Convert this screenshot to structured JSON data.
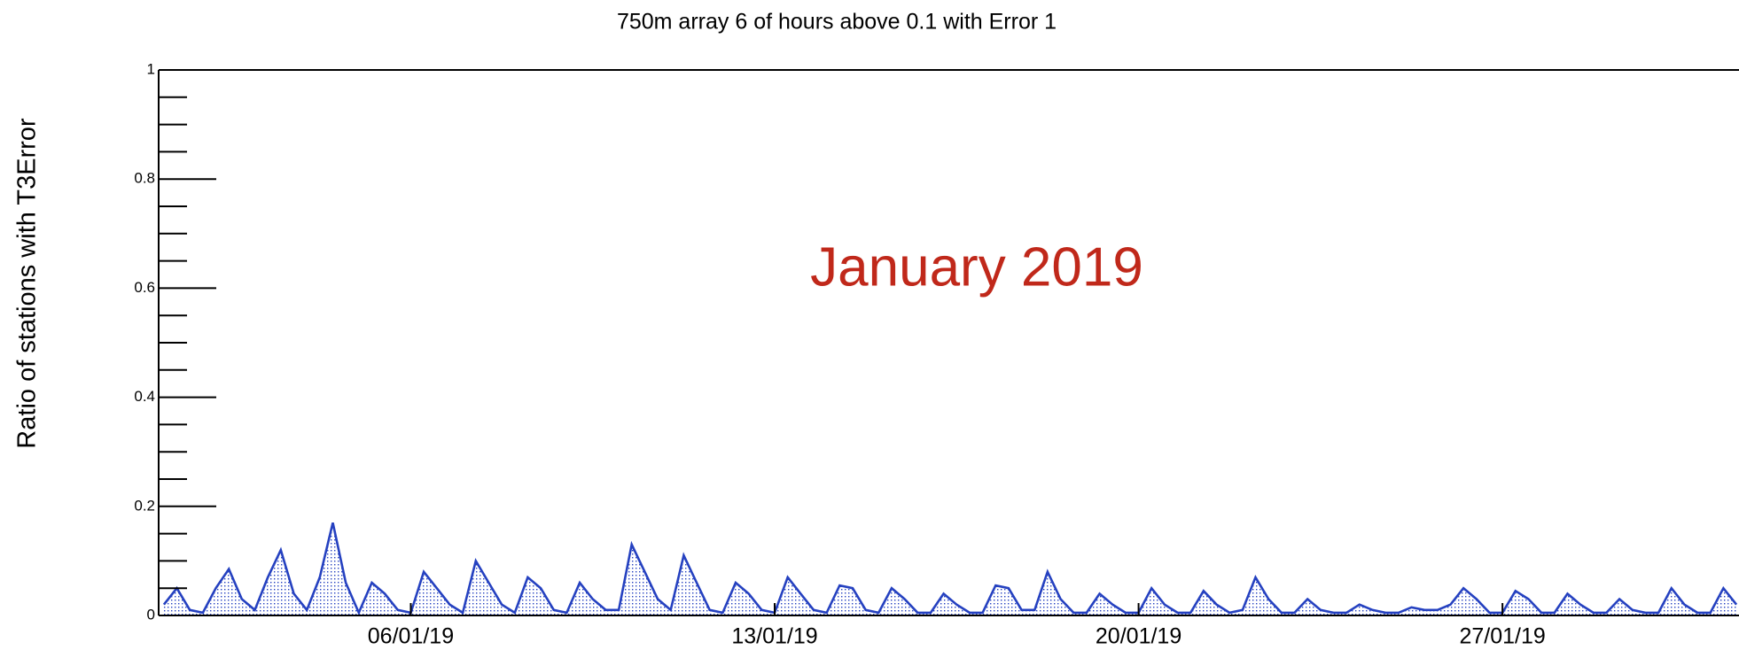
{
  "chart_data": {
    "type": "area",
    "title": "750m array 6 of hours above 0.1  with Error 1",
    "ylabel": "Ratio of stations with T3Error",
    "annotation": "January 2019",
    "color": "#2541c0",
    "annotation_color": "#c0281a",
    "xlim": [
      1.15,
      31.55
    ],
    "ylim": [
      0,
      1
    ],
    "yticks": [
      0,
      0.2,
      0.4,
      0.6,
      0.8,
      1
    ],
    "yminorticks": [
      0.05,
      0.1,
      0.15,
      0.25,
      0.3,
      0.35,
      0.45,
      0.5,
      0.55,
      0.65,
      0.7,
      0.75,
      0.85,
      0.9,
      0.95
    ],
    "xticks": [
      {
        "value": 6,
        "label": "06/01/19"
      },
      {
        "value": 13,
        "label": "13/01/19"
      },
      {
        "value": 20,
        "label": "20/01/19"
      },
      {
        "value": 27,
        "label": "27/01/19"
      }
    ],
    "x": [
      1.25,
      1.5,
      1.75,
      2,
      2.25,
      2.5,
      2.75,
      3,
      3.25,
      3.5,
      3.75,
      4,
      4.25,
      4.5,
      4.75,
      5,
      5.25,
      5.5,
      5.75,
      6,
      6.25,
      6.5,
      6.75,
      7,
      7.25,
      7.5,
      7.75,
      8,
      8.25,
      8.5,
      8.75,
      9,
      9.25,
      9.5,
      9.75,
      10,
      10.25,
      10.5,
      10.75,
      11,
      11.25,
      11.5,
      11.75,
      12,
      12.25,
      12.5,
      12.75,
      13,
      13.25,
      13.5,
      13.75,
      14,
      14.25,
      14.5,
      14.75,
      15,
      15.25,
      15.5,
      15.75,
      16,
      16.25,
      16.5,
      16.75,
      17,
      17.25,
      17.5,
      17.75,
      18,
      18.25,
      18.5,
      18.75,
      19,
      19.25,
      19.5,
      19.75,
      20,
      20.25,
      20.5,
      20.75,
      21,
      21.25,
      21.5,
      21.75,
      22,
      22.25,
      22.5,
      22.75,
      23,
      23.25,
      23.5,
      23.75,
      24,
      24.25,
      24.5,
      24.75,
      25,
      25.25,
      25.5,
      25.75,
      26,
      26.25,
      26.5,
      26.75,
      27,
      27.25,
      27.5,
      27.75,
      28,
      28.25,
      28.5,
      28.75,
      29,
      29.25,
      29.5,
      29.75,
      30,
      30.25,
      30.5,
      30.75,
      31,
      31.25,
      31.5
    ],
    "values": [
      0.02,
      0.05,
      0.01,
      0.005,
      0.05,
      0.085,
      0.03,
      0.01,
      0.07,
      0.12,
      0.04,
      0.01,
      0.07,
      0.17,
      0.06,
      0.005,
      0.06,
      0.04,
      0.01,
      0.005,
      0.08,
      0.05,
      0.02,
      0.005,
      0.1,
      0.06,
      0.02,
      0.005,
      0.07,
      0.05,
      0.01,
      0.005,
      0.06,
      0.03,
      0.01,
      0.01,
      0.13,
      0.08,
      0.03,
      0.01,
      0.11,
      0.06,
      0.01,
      0.005,
      0.06,
      0.04,
      0.01,
      0.005,
      0.07,
      0.04,
      0.01,
      0.005,
      0.055,
      0.05,
      0.01,
      0.005,
      0.05,
      0.03,
      0.005,
      0.005,
      0.04,
      0.02,
      0.005,
      0.005,
      0.055,
      0.05,
      0.01,
      0.01,
      0.08,
      0.03,
      0.005,
      0.005,
      0.04,
      0.02,
      0.005,
      0.005,
      0.05,
      0.02,
      0.005,
      0.005,
      0.045,
      0.02,
      0.005,
      0.01,
      0.07,
      0.03,
      0.005,
      0.005,
      0.03,
      0.01,
      0.005,
      0.005,
      0.02,
      0.01,
      0.005,
      0.005,
      0.015,
      0.01,
      0.01,
      0.02,
      0.05,
      0.03,
      0.005,
      0.005,
      0.045,
      0.03,
      0.005,
      0.005,
      0.04,
      0.02,
      0.005,
      0.005,
      0.03,
      0.01,
      0.005,
      0.005,
      0.05,
      0.02,
      0.005,
      0.005,
      0.05,
      0.02
    ]
  }
}
